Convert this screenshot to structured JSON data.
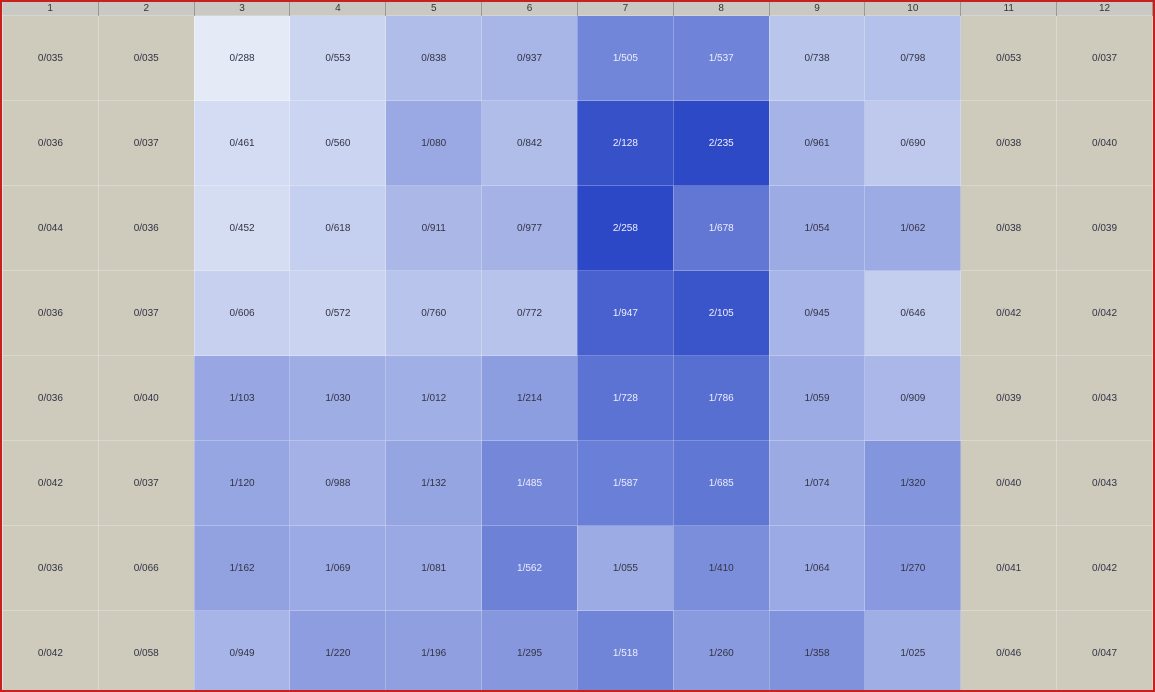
{
  "table": {
    "header": [
      "1",
      "2",
      "3",
      "4",
      "5",
      "6",
      "7",
      "8",
      "9",
      "10",
      "11",
      "12"
    ],
    "rows": [
      [
        "0/035",
        "0/035",
        "0/288",
        "0/553",
        "0/838",
        "0/937",
        "1/505",
        "1/537",
        "0/738",
        "0/798",
        "0/053",
        "0/037"
      ],
      [
        "0/036",
        "0/037",
        "0/461",
        "0/560",
        "1/080",
        "0/842",
        "2/128",
        "2/235",
        "0/961",
        "0/690",
        "0/038",
        "0/040"
      ],
      [
        "0/044",
        "0/036",
        "0/452",
        "0/618",
        "0/911",
        "0/977",
        "2/258",
        "1/678",
        "1/054",
        "1/062",
        "0/038",
        "0/039"
      ],
      [
        "0/036",
        "0/037",
        "0/606",
        "0/572",
        "0/760",
        "0/772",
        "1/947",
        "2/105",
        "0/945",
        "0/646",
        "0/042",
        "0/042"
      ],
      [
        "0/036",
        "0/040",
        "1/103",
        "1/030",
        "1/012",
        "1/214",
        "1/728",
        "1/786",
        "1/059",
        "0/909",
        "0/039",
        "0/043"
      ],
      [
        "0/042",
        "0/037",
        "1/120",
        "0/988",
        "1/132",
        "1/485",
        "1/587",
        "1/685",
        "1/074",
        "1/320",
        "0/040",
        "0/043"
      ],
      [
        "0/036",
        "0/066",
        "1/162",
        "1/069",
        "1/081",
        "1/562",
        "1/055",
        "1/410",
        "1/064",
        "1/270",
        "0/041",
        "0/042"
      ],
      [
        "0/042",
        "0/058",
        "0/949",
        "1/220",
        "1/196",
        "1/295",
        "1/518",
        "1/260",
        "1/358",
        "1/025",
        "0/046",
        "0/047"
      ]
    ]
  }
}
